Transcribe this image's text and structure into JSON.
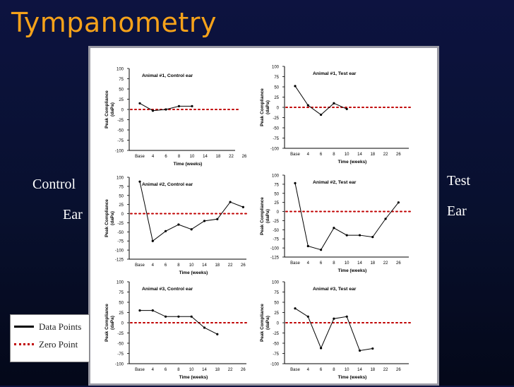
{
  "title": "Tympanometry",
  "side_labels": {
    "left_line1": "Control",
    "left_line2": "Ear",
    "right_line1": "Test",
    "right_line2": "Ear"
  },
  "legend": {
    "data_points": "Data Points",
    "zero_point": "Zero Point"
  },
  "colors": {
    "title": "#f5a21a",
    "zero_line": "#c00000",
    "data_line": "#000000"
  },
  "chart_data": [
    {
      "type": "line",
      "title": "Animal #1, Control ear",
      "xlabel": "Time (weeks)",
      "ylabel": "Peak Compliance (daPa)",
      "categories": [
        "Base",
        "4",
        "6",
        "8",
        "10",
        "14",
        "18",
        "22",
        "26"
      ],
      "values": [
        15,
        -3,
        0,
        8,
        8,
        null,
        null,
        null,
        null
      ],
      "ylim": [
        -100,
        100
      ],
      "yticks": [
        100,
        75,
        50,
        25,
        0,
        -25,
        -50,
        -75,
        -100
      ]
    },
    {
      "type": "line",
      "title": "Animal #1, Test ear",
      "xlabel": "Time (weeks)",
      "ylabel": "Peak Compliance (daPa)",
      "categories": [
        "Base",
        "4",
        "6",
        "8",
        "10",
        "14",
        "18",
        "22",
        "26"
      ],
      "values": [
        52,
        5,
        -18,
        10,
        -4,
        null,
        null,
        null,
        null
      ],
      "ylim": [
        -100,
        100
      ],
      "yticks": [
        100,
        75,
        50,
        25,
        0,
        -25,
        -50,
        -75,
        -100
      ]
    },
    {
      "type": "line",
      "title": "Animal #2, Control ear",
      "xlabel": "Time (weeks)",
      "ylabel": "Peak Compliance (daPa)",
      "categories": [
        "Base",
        "4",
        "6",
        "8",
        "10",
        "14",
        "18",
        "22",
        "26"
      ],
      "values": [
        88,
        -75,
        -48,
        -30,
        -43,
        -20,
        -15,
        32,
        18
      ],
      "ylim": [
        -125,
        100
      ],
      "yticks": [
        100,
        75,
        50,
        25,
        0,
        -25,
        -50,
        -75,
        -100,
        -125
      ]
    },
    {
      "type": "line",
      "title": "Animal #2, Test ear",
      "xlabel": "Time (weeks)",
      "ylabel": "Peak Compliance (daPa)",
      "categories": [
        "Base",
        "4",
        "6",
        "8",
        "10",
        "14",
        "18",
        "22",
        "26"
      ],
      "values": [
        78,
        -95,
        -105,
        -45,
        -65,
        -65,
        -70,
        -20,
        25
      ],
      "ylim": [
        -125,
        100
      ],
      "yticks": [
        100,
        75,
        50,
        25,
        0,
        -25,
        -50,
        -75,
        -100,
        -125
      ]
    },
    {
      "type": "line",
      "title": "Animal #3, Control ear",
      "xlabel": "Time (weeks)",
      "ylabel": "Peak Compliance (daPa)",
      "categories": [
        "Base",
        "4",
        "6",
        "8",
        "10",
        "14",
        "18",
        "22",
        "26"
      ],
      "values": [
        30,
        30,
        15,
        15,
        15,
        -12,
        -28,
        null,
        null
      ],
      "ylim": [
        -100,
        100
      ],
      "yticks": [
        100,
        75,
        50,
        25,
        0,
        -25,
        -50,
        -75,
        -100
      ]
    },
    {
      "type": "line",
      "title": "Animal #3, Test ear",
      "xlabel": "Time (weeks)",
      "ylabel": "Peak Compliance (daPa)",
      "categories": [
        "Base",
        "4",
        "6",
        "8",
        "10",
        "14",
        "18",
        "22",
        "26"
      ],
      "values": [
        35,
        15,
        -62,
        10,
        15,
        -68,
        -63,
        null,
        null
      ],
      "ylim": [
        -100,
        100
      ],
      "yticks": [
        100,
        75,
        50,
        25,
        0,
        -25,
        -50,
        -75,
        -100
      ]
    }
  ]
}
